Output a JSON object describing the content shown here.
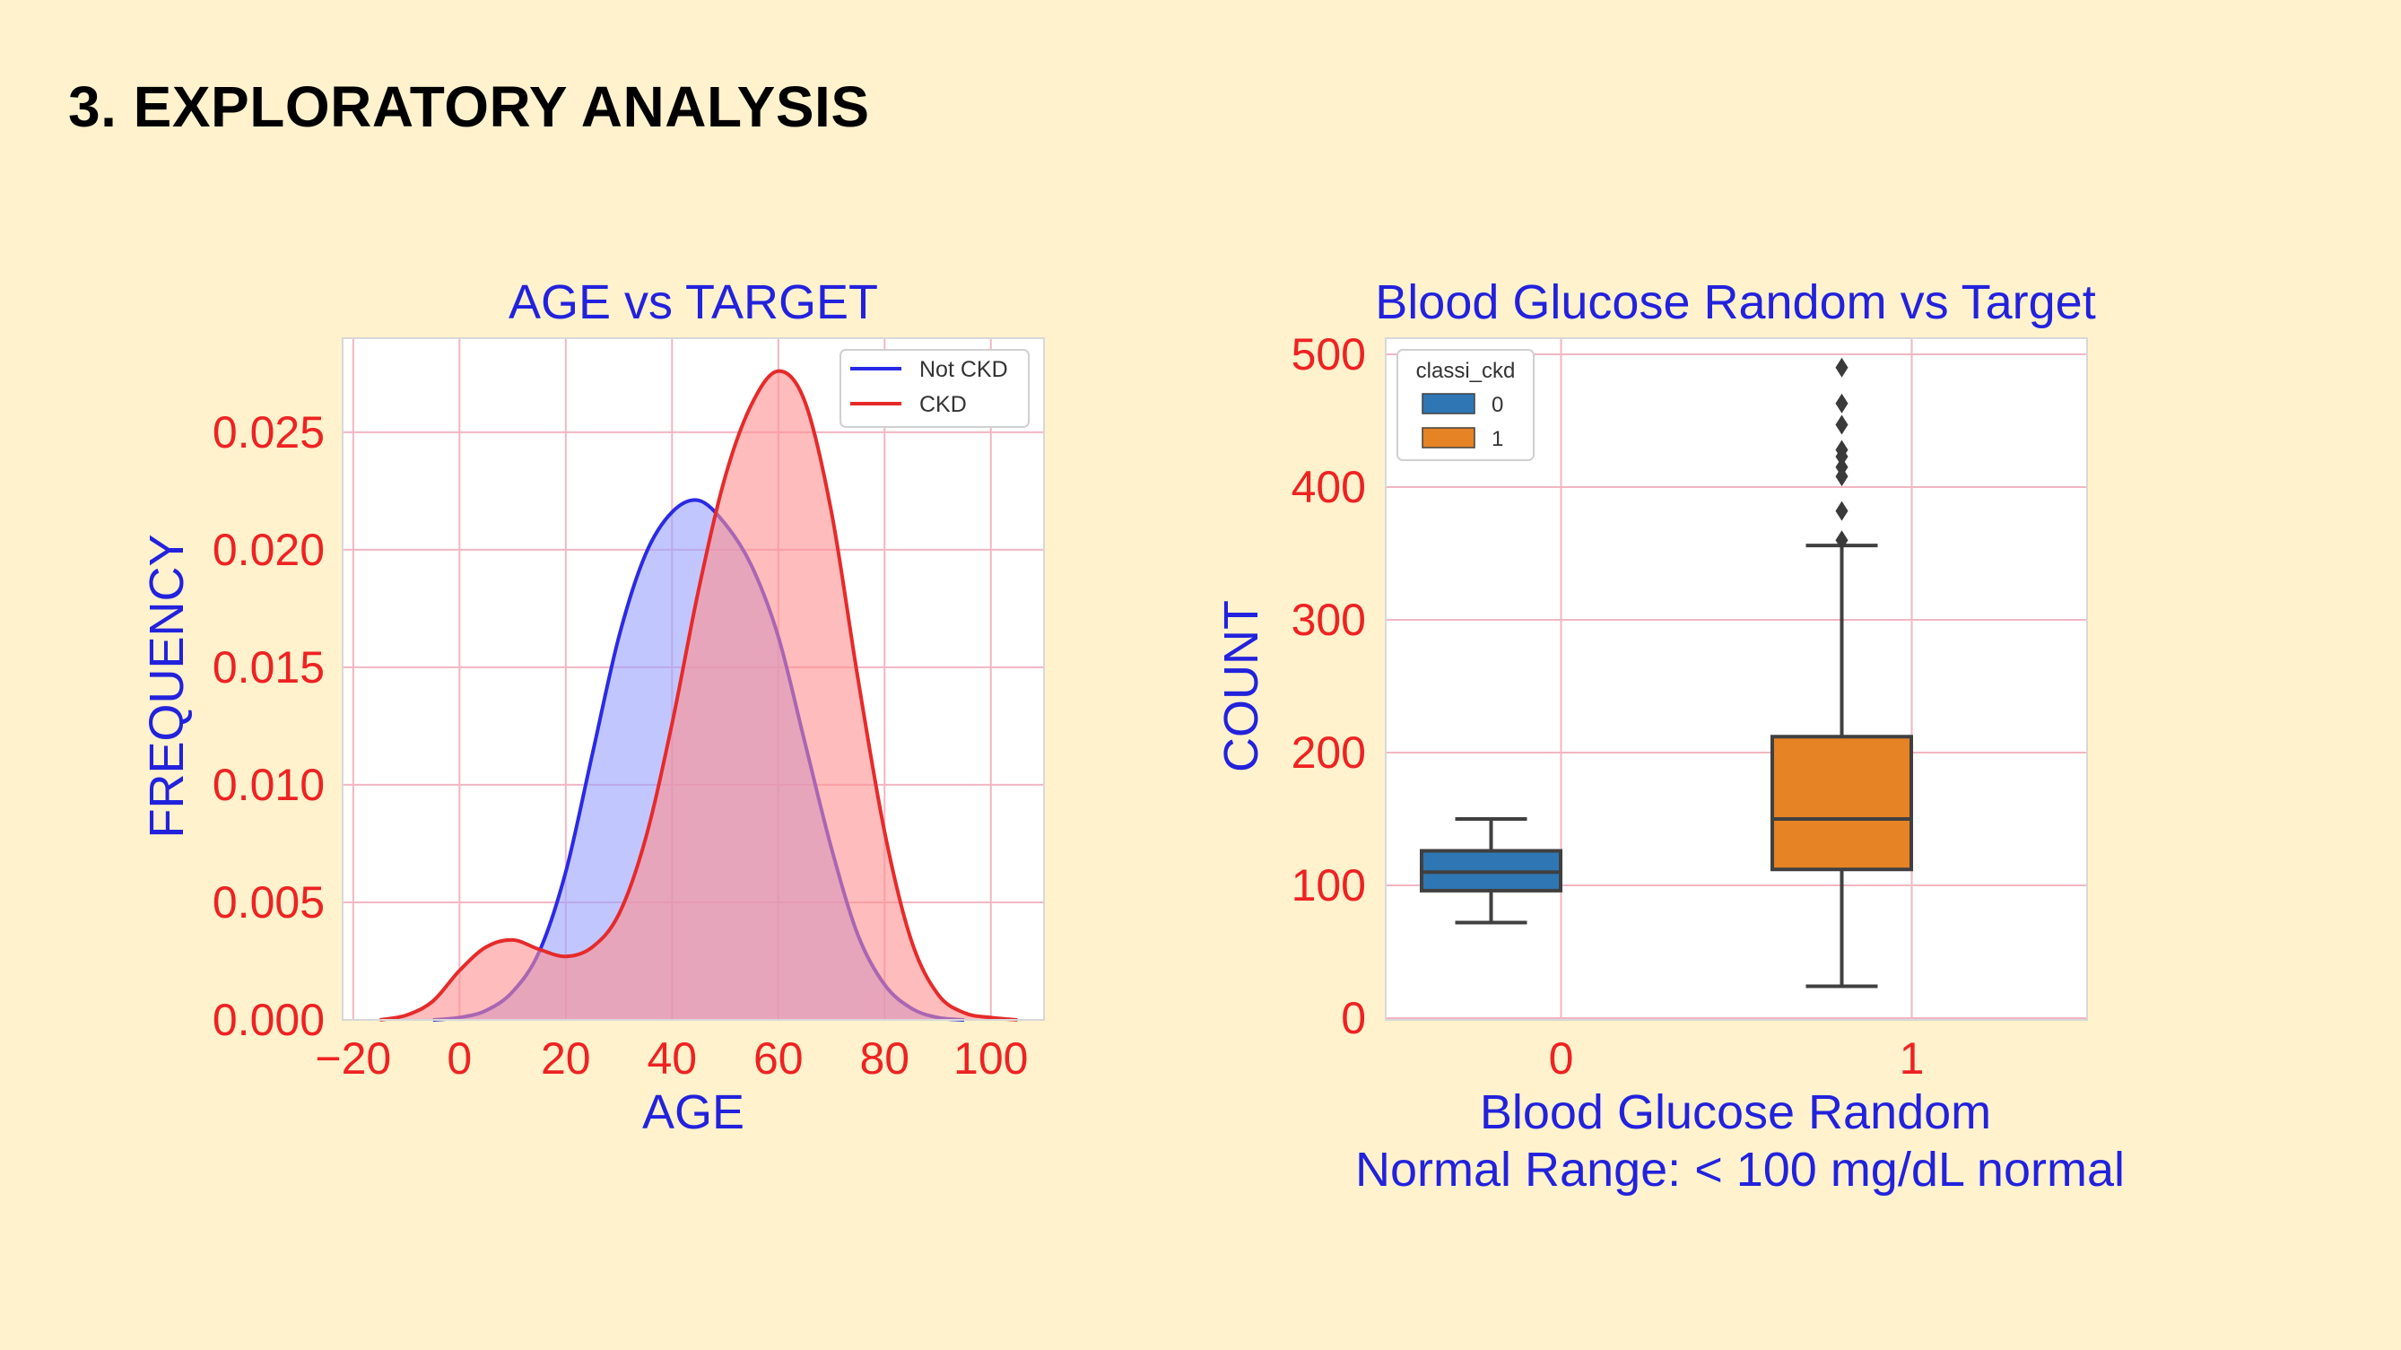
{
  "slide": {
    "title": "3. EXPLORATORY ANALYSIS"
  },
  "colors": {
    "background": "#fff2cc",
    "title_blue": "#2222dd",
    "tick_red": "#ee2222",
    "grid": "#f2b6c2",
    "not_ckd_line": "#2a2ae6",
    "not_ckd_fill": "#9aa0ff",
    "ckd_line": "#e62a2a",
    "ckd_fill": "#ff8f8f",
    "box_0": "#2f77b4",
    "box_1": "#e58325",
    "whisker": "#404040"
  },
  "chart_data": [
    {
      "type": "area",
      "title": "AGE vs TARGET",
      "xlabel": "AGE",
      "ylabel": "FREQUENCY",
      "xlim": [
        -22,
        110
      ],
      "ylim": [
        0,
        0.029
      ],
      "xticks": [
        -20,
        0,
        20,
        40,
        60,
        80,
        100
      ],
      "xtick_labels": [
        "−20",
        "0",
        "20",
        "40",
        "60",
        "80",
        "100"
      ],
      "yticks": [
        0,
        0.005,
        0.01,
        0.015,
        0.02,
        0.025
      ],
      "ytick_labels": [
        "0.000",
        "0.005",
        "0.010",
        "0.015",
        "0.020",
        "0.025"
      ],
      "grid": true,
      "legend": "top-right",
      "series": [
        {
          "name": "Not CKD",
          "x": [
            -5,
            0,
            5,
            10,
            15,
            20,
            25,
            30,
            35,
            40,
            45,
            50,
            55,
            60,
            65,
            70,
            75,
            80,
            85,
            90,
            95
          ],
          "y": [
            0.0,
            0.0001,
            0.0004,
            0.0012,
            0.0029,
            0.0063,
            0.0113,
            0.0163,
            0.0198,
            0.0216,
            0.0221,
            0.0211,
            0.0193,
            0.0163,
            0.0118,
            0.0073,
            0.0036,
            0.0015,
            0.0005,
            0.0001,
            0.0
          ]
        },
        {
          "name": "CKD",
          "x": [
            -15,
            -10,
            -5,
            0,
            5,
            10,
            15,
            20,
            25,
            30,
            35,
            40,
            45,
            50,
            55,
            60,
            65,
            70,
            75,
            80,
            85,
            90,
            95,
            100,
            105
          ],
          "y": [
            0.0,
            0.0002,
            0.0008,
            0.0021,
            0.0031,
            0.0034,
            0.003,
            0.0027,
            0.0031,
            0.0045,
            0.0077,
            0.0126,
            0.0183,
            0.0231,
            0.0262,
            0.0276,
            0.0263,
            0.0216,
            0.0145,
            0.008,
            0.0034,
            0.0011,
            0.0003,
            0.0001,
            0.0
          ]
        }
      ]
    },
    {
      "type": "box",
      "title": "Blood Glucose Random vs Target",
      "xlabel": "Blood Glucose Random",
      "xlabel2": "Normal Range: < 100 mg/dL normal",
      "ylabel": "COUNT",
      "ylim": [
        0,
        500
      ],
      "yticks": [
        0,
        100,
        200,
        300,
        400,
        500
      ],
      "ytick_labels": [
        "0",
        "100",
        "200",
        "300",
        "400",
        "500"
      ],
      "categories": [
        "0",
        "1"
      ],
      "grid": true,
      "legend": "top-left",
      "legend_title": "classi_ckd",
      "legend_labels": [
        "0",
        "1"
      ],
      "boxes": [
        {
          "category": "0",
          "whisker_low": 72,
          "q1": 96,
          "median": 110,
          "q3": 126,
          "whisker_high": 150,
          "outliers": []
        },
        {
          "category": "1",
          "whisker_low": 24,
          "q1": 112,
          "median": 150,
          "q3": 212,
          "whisker_high": 356,
          "outliers": [
            360,
            382,
            408,
            415,
            423,
            428,
            447,
            463,
            490
          ]
        }
      ]
    }
  ]
}
